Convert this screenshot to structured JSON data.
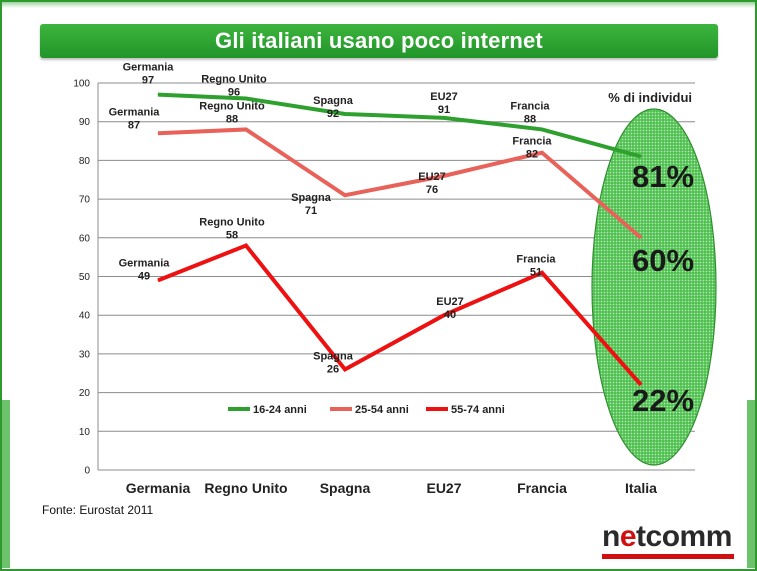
{
  "title": "Gli italiani usano poco internet",
  "source": "Fonte: Eurostat  2011",
  "logo": {
    "text_pre": "n",
    "text_accent": "e",
    "text_post": "tcomm"
  },
  "colors": {
    "green": "#2ea02e",
    "salmon": "#e8625a",
    "red": "#ee1111",
    "title_bar": "#2aa52a",
    "ellipse": "#4cc24c"
  },
  "chart_data": {
    "type": "line",
    "ylabel": "% di individui",
    "ylim": [
      0,
      100
    ],
    "yticks": [
      0,
      10,
      20,
      30,
      40,
      50,
      60,
      70,
      80,
      90,
      100
    ],
    "categories": [
      "Germania",
      "Regno Unito",
      "Spagna",
      "EU27",
      "Francia",
      "Italia"
    ],
    "grid": true,
    "legend_position": "bottom-center",
    "series": [
      {
        "name": "16-24 anni",
        "color": "#2ea02e",
        "values": [
          97,
          96,
          92,
          91,
          88,
          81
        ]
      },
      {
        "name": "25-54 anni",
        "color": "#e8625a",
        "values": [
          87,
          88,
          71,
          76,
          82,
          60
        ]
      },
      {
        "name": "55-74 anni",
        "color": "#ee1111",
        "values": [
          49,
          58,
          26,
          40,
          51,
          22
        ]
      }
    ],
    "point_labels": [
      [
        {
          "name": "Germania",
          "value": "97"
        },
        {
          "name": "Regno Unito",
          "value": "96"
        },
        {
          "name": "Spagna",
          "value": "92"
        },
        {
          "name": "EU27",
          "value": "91"
        },
        {
          "name": "Francia",
          "value": "88"
        }
      ],
      [
        {
          "name": "Germania",
          "value": "87"
        },
        {
          "name": "Regno Unito",
          "value": "88"
        },
        {
          "name": "Spagna",
          "value": "71"
        },
        {
          "name": "EU27",
          "value": "76"
        },
        {
          "name": "Francia",
          "value": "82"
        }
      ],
      [
        {
          "name": "Germania",
          "value": "49"
        },
        {
          "name": "Regno Unito",
          "value": "58"
        },
        {
          "name": "Spagna",
          "value": "26"
        },
        {
          "name": "EU27",
          "value": "40"
        },
        {
          "name": "Francia",
          "value": "51"
        }
      ]
    ],
    "highlight_labels": [
      "81%",
      "60%",
      "22%"
    ]
  }
}
